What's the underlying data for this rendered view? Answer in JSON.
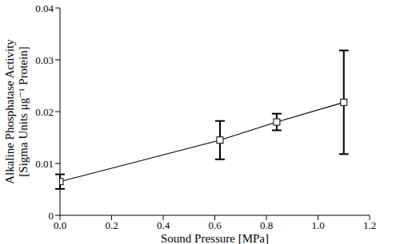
{
  "chart_data": {
    "type": "line",
    "xlabel": "Sound Pressure [MPa]",
    "ylabel": [
      "Alkaline Phosphatase Activity",
      "[Sigma Units μg⁻¹ Protein]"
    ],
    "x": [
      0,
      0.62,
      0.84,
      1.1
    ],
    "values": [
      0.0065,
      0.0145,
      0.018,
      0.0218
    ],
    "errors": [
      0.0014,
      0.0037,
      0.0016,
      0.01
    ],
    "color": "#000000",
    "marker": "square",
    "line_style": "solid",
    "xlim": [
      0,
      1.2
    ],
    "xticks": [
      {
        "value": 0,
        "label": "0.0"
      },
      0.2,
      0.4,
      0.6,
      0.8,
      {
        "value": 1,
        "label": "1.0"
      },
      1.2
    ],
    "ylim": [
      0,
      0.04
    ],
    "yticks": [
      0,
      0.01,
      0.02,
      0.03,
      0.04
    ],
    "grid": false
  }
}
